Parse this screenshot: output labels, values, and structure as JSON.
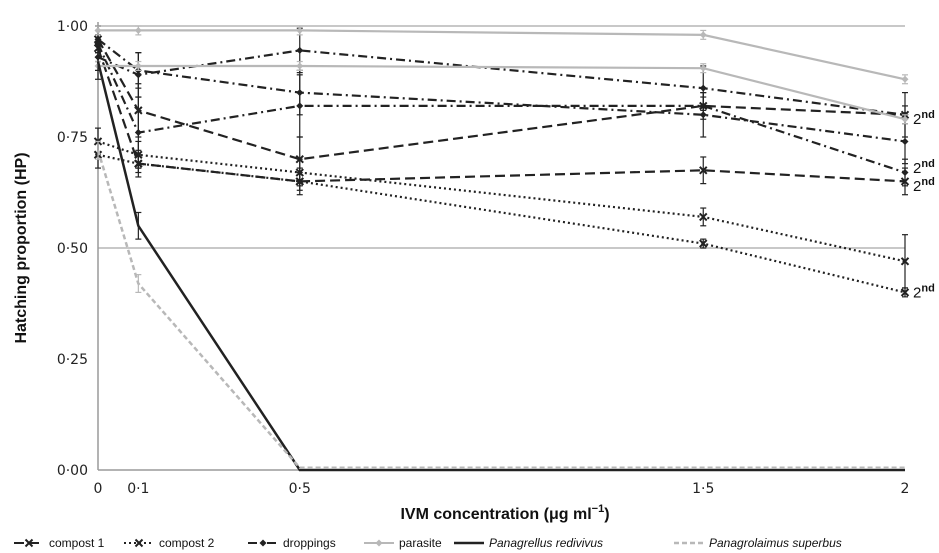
{
  "chart_data": {
    "type": "line",
    "xlabel_main": "IVM concentration",
    "xlabel_unit": "(μg ml",
    "xlabel_exp": "−1",
    "xlabel_close": ")",
    "ylabel": "Hatching proportion (HP)",
    "x_ticks": [
      {
        "value": 0,
        "label": "0"
      },
      {
        "value": 0.1,
        "label": "0·1"
      },
      {
        "value": 0.5,
        "label": "0·5"
      },
      {
        "value": 1.5,
        "label": "1·5"
      },
      {
        "value": 2,
        "label": "2"
      }
    ],
    "y_ticks": [
      {
        "value": 0,
        "label": "0·00"
      },
      {
        "value": 0.25,
        "label": "0·25"
      },
      {
        "value": 0.5,
        "label": "0·50"
      },
      {
        "value": 0.75,
        "label": "0·75"
      },
      {
        "value": 1,
        "label": "1·00"
      }
    ],
    "xlim": [
      0,
      2
    ],
    "ylim": [
      0,
      1
    ],
    "grid_y": [
      0.5,
      1.0
    ],
    "legend_position": "bottom",
    "second_gen_note": {
      "base": "2",
      "sup": "nd"
    },
    "second_gen_labels_at_y": [
      0.79,
      0.68,
      0.64,
      0.4
    ],
    "series": [
      {
        "name": "compost 1",
        "color": "#222222",
        "dash": "10,5",
        "marker": "x",
        "groups": [
          {
            "x": [
              0,
              0.1,
              0.5,
              1.5,
              2
            ],
            "y": [
              0.95,
              0.69,
              0.65,
              0.675,
              0.65
            ],
            "err": [
              0.03,
              0.03,
              0.03,
              0.03,
              0.03
            ]
          },
          {
            "x": [
              0,
              0.1,
              0.5,
              1.5,
              2
            ],
            "y": [
              0.97,
              0.81,
              0.7,
              0.82,
              0.8
            ],
            "err": [
              0.03,
              0.06,
              0.05,
              0.03,
              0.02
            ]
          }
        ]
      },
      {
        "name": "compost 2",
        "color": "#222222",
        "dash": "2,3",
        "marker": "x",
        "groups": [
          {
            "x": [
              0,
              0.1,
              0.5,
              1.5,
              2
            ],
            "y": [
              0.74,
              0.71,
              0.67,
              0.57,
              0.47
            ],
            "err": [
              0.03,
              0.03,
              0.03,
              0.02,
              0.06
            ]
          },
          {
            "x": [
              0,
              0.1,
              0.5,
              1.5,
              2
            ],
            "y": [
              0.71,
              0.69,
              0.65,
              0.51,
              0.4
            ],
            "err": [
              0.03,
              0.02,
              0.02,
              0.01,
              0.01
            ]
          }
        ]
      },
      {
        "name": "droppings",
        "color": "#222222",
        "dash": "9,4,2,4",
        "marker": "diamond",
        "groups": [
          {
            "x": [
              0,
              0.1,
              0.5,
              1.5,
              2
            ],
            "y": [
              0.97,
              0.9,
              0.85,
              0.8,
              0.74
            ],
            "err": [
              0.03,
              0.04,
              0.05,
              0.05,
              0.05
            ]
          },
          {
            "x": [
              0,
              0.1,
              0.5,
              1.5,
              2
            ],
            "y": [
              0.96,
              0.76,
              0.82,
              0.82,
              0.67
            ],
            "err": [
              0.03,
              0.08,
              0.07,
              0.02,
              0.03
            ]
          },
          {
            "x": [
              0,
              0.1,
              0.5,
              1.5,
              2
            ],
            "y": [
              0.93,
              0.89,
              0.945,
              0.86,
              0.8
            ],
            "err": [
              0.05,
              0.05,
              0.05,
              0.05,
              0.05
            ]
          }
        ]
      },
      {
        "name": "parasite",
        "color": "#b8b8b8",
        "dash": "",
        "marker": "diamond",
        "groups": [
          {
            "x": [
              0,
              0.1,
              0.5,
              1.5,
              2
            ],
            "y": [
              0.99,
              0.99,
              0.99,
              0.98,
              0.88
            ],
            "err": [
              0.01,
              0.01,
              0.01,
              0.01,
              0.01
            ]
          },
          {
            "x": [
              0,
              0.1,
              0.5,
              1.5,
              2
            ],
            "y": [
              0.91,
              0.91,
              0.91,
              0.905,
              0.79
            ],
            "err": [
              0.01,
              0.01,
              0.01,
              0.01,
              0.01
            ]
          }
        ]
      },
      {
        "name": "Panagrellus redivivus",
        "color": "#222222",
        "dash": "",
        "marker": "none",
        "italic": true,
        "width": 2.5,
        "groups": [
          {
            "x": [
              0,
              0.1,
              0.5,
              1.5,
              2
            ],
            "y": [
              0.92,
              0.55,
              0.0,
              0.0,
              0.0
            ],
            "err": [
              0.02,
              0.03,
              0.0,
              0.0,
              0.0
            ]
          }
        ]
      },
      {
        "name": "Panagrolaimus superbus",
        "color": "#b8b8b8",
        "dash": "5,3",
        "marker": "none",
        "italic": true,
        "width": 2.5,
        "groups": [
          {
            "x": [
              0,
              0.1,
              0.5,
              1.5,
              2
            ],
            "y": [
              0.72,
              0.42,
              0.005,
              0.005,
              0.005
            ],
            "err": [
              0.02,
              0.02,
              0.0,
              0.0,
              0.0
            ]
          }
        ]
      }
    ]
  }
}
